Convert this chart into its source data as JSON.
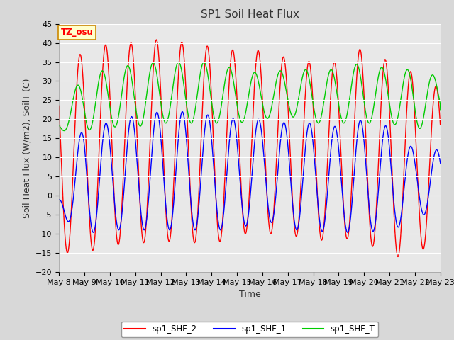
{
  "title": "SP1 Soil Heat Flux",
  "ylabel": "Soil Heat Flux (W/m2), SoilT (C)",
  "xlabel": "Time",
  "ylim": [
    -20,
    45
  ],
  "xlim": [
    0,
    15
  ],
  "xtick_labels": [
    "May 8",
    "May 9",
    "May 10",
    "May 11",
    "May 12",
    "May 13",
    "May 14",
    "May 15",
    "May 16",
    "May 17",
    "May 18",
    "May 19",
    "May 20",
    "May 21",
    "May 22",
    "May 23"
  ],
  "tz_label": "TZ_osu",
  "legend": [
    "sp1_SHF_2",
    "sp1_SHF_1",
    "sp1_SHF_T"
  ],
  "colors": {
    "sp1_SHF_2": "#ff0000",
    "sp1_SHF_1": "#0000ff",
    "sp1_SHF_T": "#00cc00"
  },
  "bg_color": "#e8e8e8",
  "grid_color": "#ffffff",
  "title_fontsize": 11,
  "axis_fontsize": 9,
  "tick_fontsize": 8,
  "shf2_peaks": [
    37,
    37,
    40,
    40,
    41,
    40,
    39,
    38,
    38,
    36,
    35,
    35,
    39,
    35,
    32,
    28
  ],
  "shf2_troughs": [
    -15,
    -15,
    -13,
    -12.5,
    -12,
    -12,
    -13,
    -10,
    -10,
    -10,
    -12,
    -11,
    -12,
    -16,
    -16,
    -10
  ],
  "shf1_peaks": [
    0,
    19,
    19,
    21,
    22,
    22,
    21,
    20,
    20,
    19,
    19,
    18,
    20,
    18,
    12,
    12
  ],
  "shf1_troughs": [
    -5,
    -10,
    -9,
    -9,
    -9,
    -9,
    -9,
    -9,
    -6,
    -9,
    -9,
    -10,
    -9,
    -10,
    -5,
    -5
  ],
  "shft_peaks": [
    21,
    32,
    33,
    34.5,
    35,
    35,
    35,
    33,
    32,
    33,
    33,
    33,
    35,
    33,
    33,
    31
  ],
  "shft_troughs": [
    17,
    17,
    18,
    18,
    19,
    19,
    19,
    19,
    20,
    21,
    19,
    19,
    19,
    19,
    17,
    20
  ]
}
